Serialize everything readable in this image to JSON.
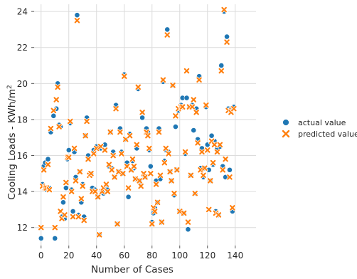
{
  "chart_data": {
    "type": "scatter",
    "xlabel": "Number of Cases",
    "ylabel": "Cooling Loads - KWh/m",
    "ylabel_superscript": "2",
    "xlim": [
      -5,
      155
    ],
    "ylim": [
      11,
      24.4
    ],
    "x_ticks": [
      0,
      20,
      40,
      60,
      80,
      100,
      120,
      140
    ],
    "y_ticks": [
      12,
      14,
      16,
      18,
      20,
      22,
      24
    ],
    "grid": true,
    "legend_position": "right",
    "series": [
      {
        "name": "actual value",
        "color": "#1f77b4",
        "marker": "circle",
        "points": [
          [
            0,
            11.4
          ],
          [
            1,
            14.4
          ],
          [
            2,
            15.4
          ],
          [
            3,
            15.6
          ],
          [
            4,
            14.1
          ],
          [
            5,
            15.8
          ],
          [
            6,
            14.2
          ],
          [
            7,
            17.3
          ],
          [
            9,
            18.2
          ],
          [
            10,
            11.4
          ],
          [
            11,
            18.6
          ],
          [
            12,
            20
          ],
          [
            13,
            17.7
          ],
          [
            14,
            17.6
          ],
          [
            15,
            12.6
          ],
          [
            16,
            13.4
          ],
          [
            17,
            12.5
          ],
          [
            18,
            14.2
          ],
          [
            19,
            15.8
          ],
          [
            20,
            16.3
          ],
          [
            21,
            17.8
          ],
          [
            22,
            14.1
          ],
          [
            23,
            12.9
          ],
          [
            24,
            16.2
          ],
          [
            25,
            14.8
          ],
          [
            26,
            23.8
          ],
          [
            27,
            12.7
          ],
          [
            28,
            15.1
          ],
          [
            29,
            13.4
          ],
          [
            30,
            14.4
          ],
          [
            31,
            12.6
          ],
          [
            32,
            17.1
          ],
          [
            33,
            18.1
          ],
          [
            34,
            16
          ],
          [
            35,
            15
          ],
          [
            36,
            15
          ],
          [
            37,
            14.2
          ],
          [
            38,
            16.3
          ],
          [
            39,
            14.1
          ],
          [
            40,
            16.5
          ],
          [
            41,
            13.7
          ],
          [
            42,
            11.6
          ],
          [
            43,
            16.4
          ],
          [
            44,
            14
          ],
          [
            45,
            13.9
          ],
          [
            46,
            16.6
          ],
          [
            47,
            14.3
          ],
          [
            48,
            14.1
          ],
          [
            49,
            15.4
          ],
          [
            50,
            17.3
          ],
          [
            51,
            15.3
          ],
          [
            52,
            16.2
          ],
          [
            53,
            14.8
          ],
          [
            54,
            18.8
          ],
          [
            55,
            12.2
          ],
          [
            56,
            15.1
          ],
          [
            57,
            17.5
          ],
          [
            58,
            16.2
          ],
          [
            59,
            15
          ],
          [
            60,
            20.5
          ],
          [
            61,
            16.9
          ],
          [
            62,
            15.6
          ],
          [
            63,
            13.7
          ],
          [
            64,
            17.2
          ],
          [
            65,
            15.2
          ],
          [
            66,
            15.7
          ],
          [
            67,
            15.3
          ],
          [
            68,
            14.7
          ],
          [
            69,
            16.4
          ],
          [
            70,
            19.7
          ],
          [
            71,
            14.6
          ],
          [
            72,
            14.4
          ],
          [
            73,
            18.1
          ],
          [
            74,
            14.9
          ],
          [
            75,
            14.8
          ],
          [
            76,
            17.5
          ],
          [
            77,
            17.3
          ],
          [
            78,
            16.3
          ],
          [
            79,
            15.4
          ],
          [
            80,
            12.3
          ],
          [
            81,
            12.8
          ],
          [
            82,
            13.1
          ],
          [
            83,
            14.6
          ],
          [
            84,
            13.4
          ],
          [
            85,
            17.5
          ],
          [
            86,
            14.7
          ],
          [
            87,
            12.3
          ],
          [
            88,
            20.1
          ],
          [
            89,
            15.7
          ],
          [
            90,
            16.3
          ],
          [
            91,
            23
          ],
          [
            92,
            16.2
          ],
          [
            93,
            15.1
          ],
          [
            94,
            14.6
          ],
          [
            95,
            19.9
          ],
          [
            96,
            13.8
          ],
          [
            97,
            17.6
          ],
          [
            98,
            15.2
          ],
          [
            99,
            18.5
          ],
          [
            100,
            12.9
          ],
          [
            101,
            18.8
          ],
          [
            102,
            19.2
          ],
          [
            103,
            12.8
          ],
          [
            104,
            16.1
          ],
          [
            105,
            19.2
          ],
          [
            106,
            11.9
          ],
          [
            107,
            18.7
          ],
          [
            108,
            14.9
          ],
          [
            109,
            18.8
          ],
          [
            110,
            17.4
          ],
          [
            111,
            13.9
          ],
          [
            112,
            18.6
          ],
          [
            113,
            16.9
          ],
          [
            114,
            20.4
          ],
          [
            115,
            15.3
          ],
          [
            116,
            16.4
          ],
          [
            117,
            14.8
          ],
          [
            118,
            15.3
          ],
          [
            119,
            18.7
          ],
          [
            120,
            16.6
          ],
          [
            121,
            15.2
          ],
          [
            122,
            14.6
          ],
          [
            123,
            17.1
          ],
          [
            124,
            15.5
          ],
          [
            125,
            16.8
          ],
          [
            126,
            12.9
          ],
          [
            127,
            16.4
          ],
          [
            128,
            12.7
          ],
          [
            129,
            16.5
          ],
          [
            130,
            21
          ],
          [
            131,
            15.4
          ],
          [
            132,
            24
          ],
          [
            133,
            14.8
          ],
          [
            134,
            22.6
          ],
          [
            135,
            18.6
          ],
          [
            136,
            15.2
          ],
          [
            137,
            18.6
          ],
          [
            138,
            12.9
          ],
          [
            139,
            18.7
          ]
        ]
      },
      {
        "name": "predicted value",
        "color": "#ff7f0e",
        "marker": "x",
        "points": [
          [
            0,
            12
          ],
          [
            1,
            14.3
          ],
          [
            2,
            15.2
          ],
          [
            3,
            14.2
          ],
          [
            4,
            14.2
          ],
          [
            5,
            15.5
          ],
          [
            6,
            14.1
          ],
          [
            7,
            17.5
          ],
          [
            9,
            18.5
          ],
          [
            10,
            12
          ],
          [
            11,
            19.1
          ],
          [
            12,
            19.8
          ],
          [
            13,
            17.6
          ],
          [
            14,
            12.9
          ],
          [
            15,
            12.5
          ],
          [
            16,
            13.7
          ],
          [
            17,
            12.7
          ],
          [
            18,
            14.5
          ],
          [
            19,
            15.9
          ],
          [
            20,
            15.9
          ],
          [
            21,
            17.9
          ],
          [
            22,
            14
          ],
          [
            23,
            12.6
          ],
          [
            24,
            16.4
          ],
          [
            25,
            14.6
          ],
          [
            26,
            23.5
          ],
          [
            27,
            12.6
          ],
          [
            28,
            15.1
          ],
          [
            29,
            13.6
          ],
          [
            30,
            14.3
          ],
          [
            31,
            12.4
          ],
          [
            32,
            17.1
          ],
          [
            33,
            17.9
          ],
          [
            34,
            15.8
          ],
          [
            35,
            14.9
          ],
          [
            36,
            15
          ],
          [
            37,
            14
          ],
          [
            38,
            16.1
          ],
          [
            39,
            14
          ],
          [
            40,
            16.4
          ],
          [
            41,
            13.7
          ],
          [
            42,
            11.6
          ],
          [
            43,
            16.5
          ],
          [
            44,
            14
          ],
          [
            45,
            14.2
          ],
          [
            46,
            16.3
          ],
          [
            47,
            14.4
          ],
          [
            48,
            14
          ],
          [
            49,
            15.5
          ],
          [
            50,
            17.3
          ],
          [
            51,
            15.2
          ],
          [
            52,
            16
          ],
          [
            53,
            14.8
          ],
          [
            54,
            18.6
          ],
          [
            55,
            12.2
          ],
          [
            56,
            15.1
          ],
          [
            57,
            17.3
          ],
          [
            58,
            16.1
          ],
          [
            59,
            15
          ],
          [
            60,
            20.4
          ],
          [
            61,
            16.9
          ],
          [
            62,
            15.4
          ],
          [
            63,
            14.2
          ],
          [
            64,
            17.1
          ],
          [
            65,
            15.2
          ],
          [
            66,
            15.8
          ],
          [
            67,
            15.4
          ],
          [
            68,
            14.7
          ],
          [
            69,
            16.6
          ],
          [
            70,
            19.8
          ],
          [
            71,
            14.6
          ],
          [
            72,
            14.3
          ],
          [
            73,
            18.4
          ],
          [
            74,
            15
          ],
          [
            75,
            14.8
          ],
          [
            76,
            17.3
          ],
          [
            77,
            17.1
          ],
          [
            78,
            16.4
          ],
          [
            79,
            15
          ],
          [
            80,
            12.2
          ],
          [
            81,
            13.1
          ],
          [
            82,
            12.9
          ],
          [
            83,
            14.4
          ],
          [
            84,
            13.4
          ],
          [
            85,
            17.3
          ],
          [
            86,
            14.9
          ],
          [
            87,
            12.3
          ],
          [
            88,
            20.2
          ],
          [
            89,
            15.6
          ],
          [
            90,
            16.4
          ],
          [
            91,
            22.7
          ],
          [
            92,
            16.1
          ],
          [
            93,
            15.1
          ],
          [
            94,
            14.6
          ],
          [
            95,
            19.9
          ],
          [
            96,
            13.9
          ],
          [
            97,
            18.2
          ],
          [
            98,
            15.2
          ],
          [
            99,
            18.6
          ],
          [
            100,
            12.9
          ],
          [
            101,
            18.7
          ],
          [
            102,
            18.7
          ],
          [
            103,
            12.8
          ],
          [
            104,
            16.2
          ],
          [
            105,
            20.7
          ],
          [
            106,
            12.3
          ],
          [
            107,
            18.7
          ],
          [
            108,
            14.9
          ],
          [
            109,
            18.7
          ],
          [
            110,
            19.1
          ],
          [
            111,
            13.9
          ],
          [
            112,
            18.4
          ],
          [
            113,
            16.7
          ],
          [
            114,
            20.2
          ],
          [
            115,
            15.2
          ],
          [
            116,
            16.2
          ],
          [
            117,
            14.9
          ],
          [
            118,
            15.3
          ],
          [
            119,
            18.8
          ],
          [
            120,
            16.3
          ],
          [
            121,
            13
          ],
          [
            122,
            14.6
          ],
          [
            123,
            16.8
          ],
          [
            124,
            15.6
          ],
          [
            125,
            16.6
          ],
          [
            126,
            12.8
          ],
          [
            127,
            16.2
          ],
          [
            128,
            12.7
          ],
          [
            129,
            16.6
          ],
          [
            130,
            20.7
          ],
          [
            131,
            15.2
          ],
          [
            132,
            24.1
          ],
          [
            133,
            15.8
          ],
          [
            134,
            22.3
          ],
          [
            135,
            18.5
          ],
          [
            136,
            14.8
          ],
          [
            137,
            18.4
          ],
          [
            138,
            13.1
          ],
          [
            139,
            18.6
          ]
        ]
      }
    ]
  }
}
